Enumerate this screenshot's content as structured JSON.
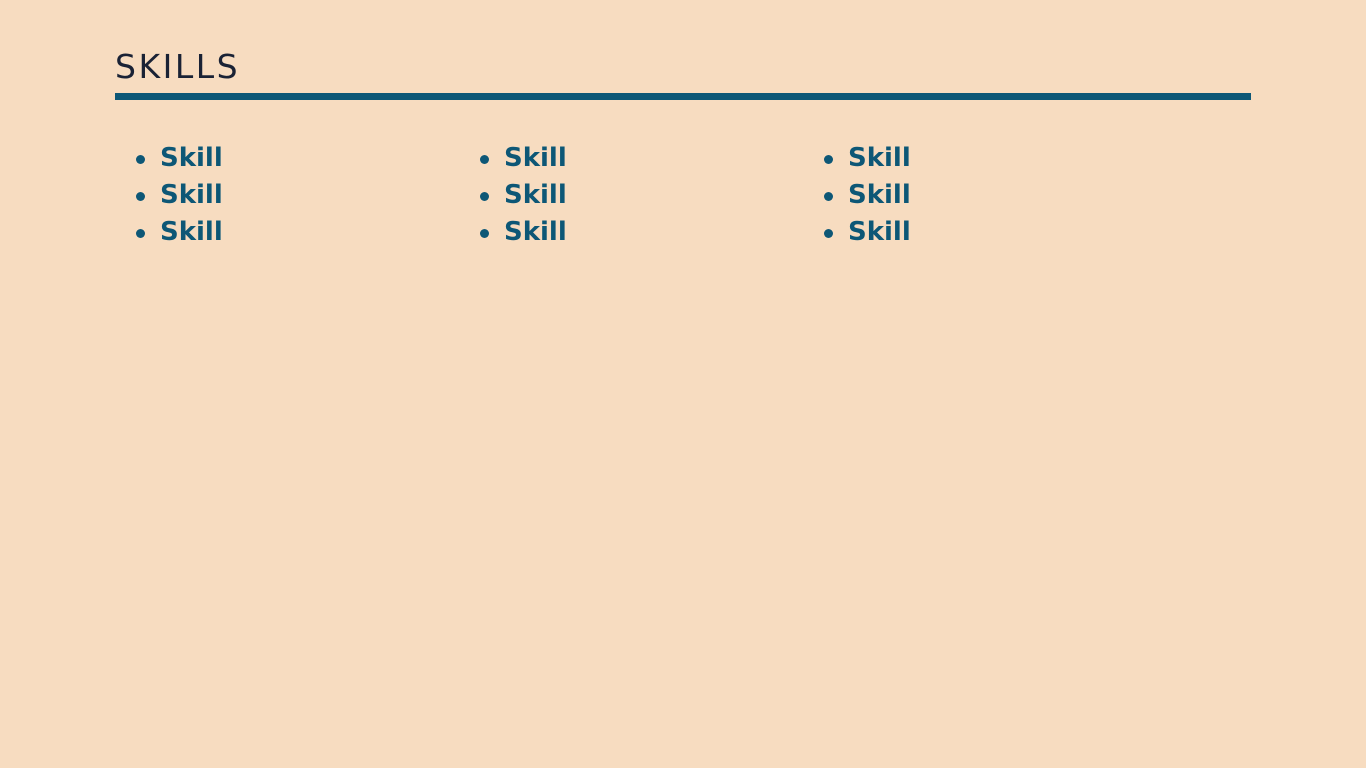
{
  "section": {
    "title": "SKILLS",
    "columns": [
      [
        "Skill",
        "Skill",
        "Skill"
      ],
      [
        "Skill",
        "Skill",
        "Skill"
      ],
      [
        "Skill",
        "Skill",
        "Skill"
      ]
    ]
  },
  "colors": {
    "background": "#f7dcc0",
    "accent": "#0d5776",
    "title": "#1a2235"
  }
}
